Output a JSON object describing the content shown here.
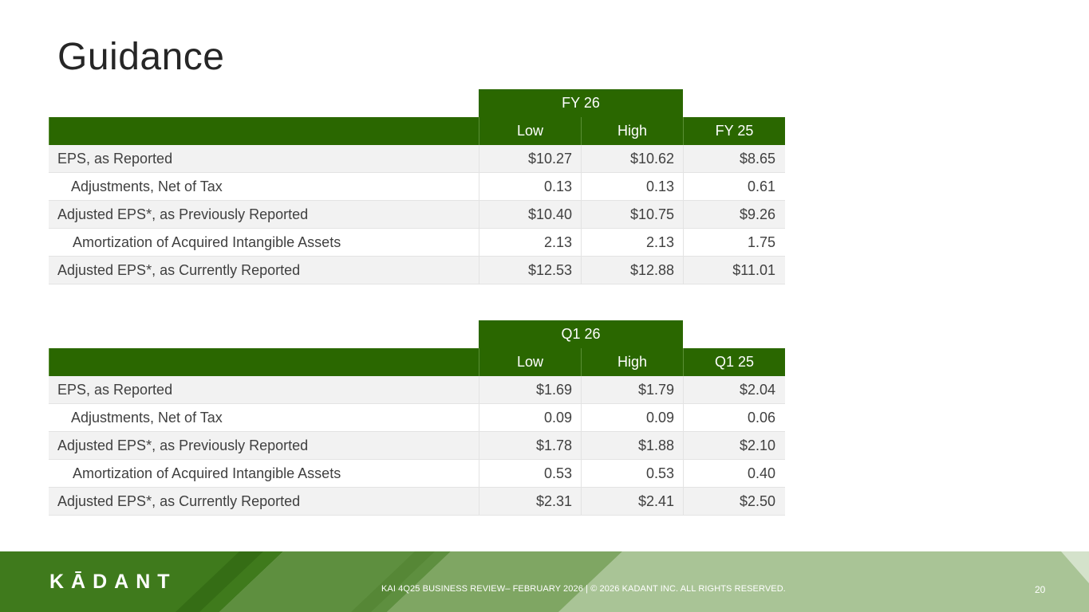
{
  "title": "Guidance",
  "fy_table": {
    "group_label": "FY 26",
    "headers": [
      "",
      "Low",
      "High",
      "FY 25"
    ],
    "rows": [
      {
        "label": "EPS, as Reported",
        "low": "$10.27",
        "high": "$10.62",
        "prior": "$8.65"
      },
      {
        "label": "Adjustments, Net of Tax",
        "low": "0.13",
        "high": "0.13",
        "prior": "0.61"
      },
      {
        "label": "Adjusted EPS*, as Previously Reported",
        "low": "$10.40",
        "high": "$10.75",
        "prior": "$9.26"
      },
      {
        "label": "Amortization of Acquired Intangible Assets",
        "low": "2.13",
        "high": "2.13",
        "prior": "1.75"
      },
      {
        "label": "Adjusted EPS*, as Currently Reported",
        "low": "$12.53",
        "high": "$12.88",
        "prior": "$11.01"
      }
    ]
  },
  "q_table": {
    "group_label": "Q1 26",
    "headers": [
      "",
      "Low",
      "High",
      "Q1 25"
    ],
    "rows": [
      {
        "label": "EPS, as Reported",
        "low": "$1.69",
        "high": "$1.79",
        "prior": "$2.04"
      },
      {
        "label": "Adjustments, Net of Tax",
        "low": "0.09",
        "high": "0.09",
        "prior": "0.06"
      },
      {
        "label": "Adjusted EPS*, as Previously Reported",
        "low": "$1.78",
        "high": "$1.88",
        "prior": "$2.10"
      },
      {
        "label": "Amortization of Acquired Intangible Assets",
        "low": "0.53",
        "high": "0.53",
        "prior": "0.40"
      },
      {
        "label": "Adjusted EPS*, as Currently Reported",
        "low": "$2.31",
        "high": "$2.41",
        "prior": "$2.50"
      }
    ]
  },
  "footer": {
    "logo": "KĀDANT",
    "text": "KAI 4Q25 BUSINESS REVIEW– FEBRUARY 2026 | © 2026 KADANT INC. ALL RIGHTS RESERVED.",
    "page_number": "20"
  },
  "colors": {
    "header_green": "#2a6700",
    "footer_dark": "#3f7a1c",
    "footer_light": "#a9c496"
  }
}
